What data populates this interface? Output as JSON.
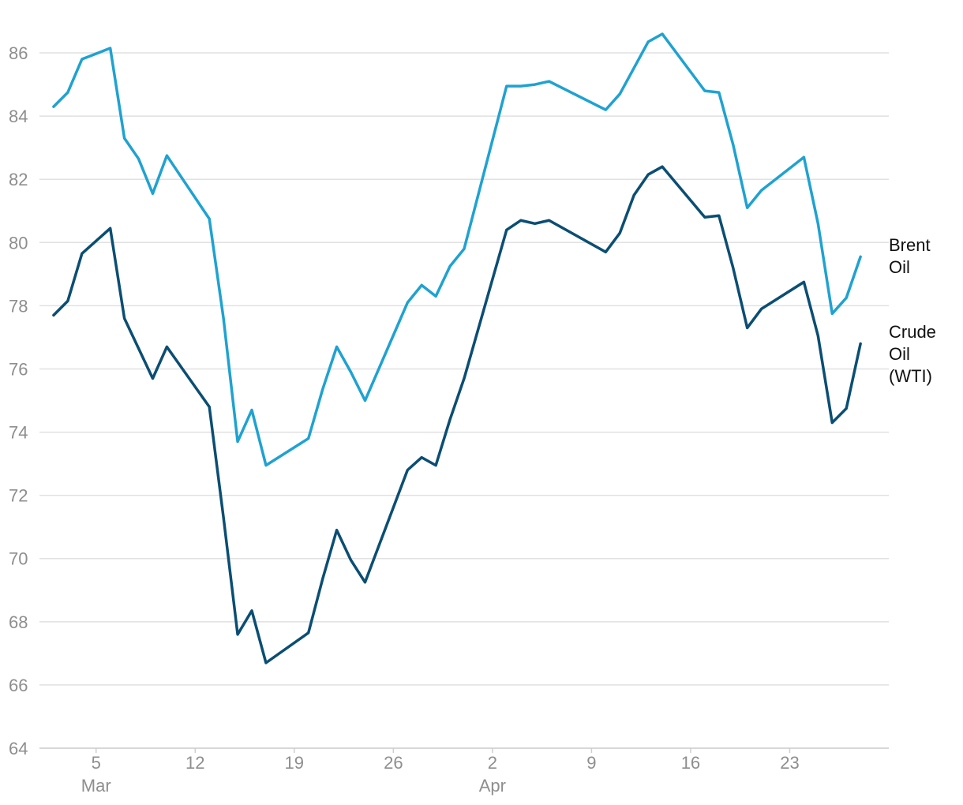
{
  "chart_data": {
    "type": "line",
    "title": "",
    "xlabel": "",
    "ylabel": "",
    "ylim": [
      64,
      87
    ],
    "yticks": [
      64,
      66,
      68,
      70,
      72,
      74,
      76,
      78,
      80,
      82,
      84,
      86
    ],
    "xlim": [
      "2024-03-01",
      "2024-04-30"
    ],
    "xticks": [
      {
        "date": "2024-03-05",
        "label": "5",
        "month": "Mar"
      },
      {
        "date": "2024-03-12",
        "label": "12",
        "month": ""
      },
      {
        "date": "2024-03-19",
        "label": "19",
        "month": ""
      },
      {
        "date": "2024-03-26",
        "label": "26",
        "month": ""
      },
      {
        "date": "2024-04-02",
        "label": "2",
        "month": "Apr"
      },
      {
        "date": "2024-04-09",
        "label": "9",
        "month": ""
      },
      {
        "date": "2024-04-16",
        "label": "16",
        "month": ""
      },
      {
        "date": "2024-04-23",
        "label": "23",
        "month": ""
      }
    ],
    "grid": true,
    "legend": "inline-right",
    "series": [
      {
        "name": "Brent Oil",
        "color": "#1fa2d1",
        "points": [
          [
            "2024-03-02",
            84.3
          ],
          [
            "2024-03-03",
            84.75
          ],
          [
            "2024-03-04",
            85.8
          ],
          [
            "2024-03-06",
            86.15
          ],
          [
            "2024-03-07",
            83.3
          ],
          [
            "2024-03-08",
            82.65
          ],
          [
            "2024-03-09",
            81.55
          ],
          [
            "2024-03-10",
            82.75
          ],
          [
            "2024-03-13",
            80.75
          ],
          [
            "2024-03-14",
            77.6
          ],
          [
            "2024-03-15",
            73.7
          ],
          [
            "2024-03-16",
            74.7
          ],
          [
            "2024-03-17",
            72.95
          ],
          [
            "2024-03-20",
            73.8
          ],
          [
            "2024-03-21",
            75.35
          ],
          [
            "2024-03-22",
            76.7
          ],
          [
            "2024-03-23",
            75.9
          ],
          [
            "2024-03-24",
            75.0
          ],
          [
            "2024-03-27",
            78.1
          ],
          [
            "2024-03-28",
            78.65
          ],
          [
            "2024-03-29",
            78.3
          ],
          [
            "2024-03-30",
            79.25
          ],
          [
            "2024-03-31",
            79.8
          ],
          [
            "2024-04-03",
            84.95
          ],
          [
            "2024-04-04",
            84.95
          ],
          [
            "2024-04-05",
            85.0
          ],
          [
            "2024-04-06",
            85.1
          ],
          [
            "2024-04-10",
            84.2
          ],
          [
            "2024-04-11",
            84.7
          ],
          [
            "2024-04-13",
            86.35
          ],
          [
            "2024-04-14",
            86.6
          ],
          [
            "2024-04-17",
            84.8
          ],
          [
            "2024-04-18",
            84.75
          ],
          [
            "2024-04-19",
            83.1
          ],
          [
            "2024-04-20",
            81.1
          ],
          [
            "2024-04-21",
            81.65
          ],
          [
            "2024-04-24",
            82.7
          ],
          [
            "2024-04-25",
            80.6
          ],
          [
            "2024-04-26",
            77.75
          ],
          [
            "2024-04-27",
            78.25
          ],
          [
            "2024-04-28",
            79.55
          ]
        ]
      },
      {
        "name": "Crude Oil (WTI)",
        "color": "#0b4e73",
        "points": [
          [
            "2024-03-02",
            77.7
          ],
          [
            "2024-03-03",
            78.15
          ],
          [
            "2024-03-04",
            79.65
          ],
          [
            "2024-03-06",
            80.45
          ],
          [
            "2024-03-07",
            77.6
          ],
          [
            "2024-03-09",
            75.7
          ],
          [
            "2024-03-10",
            76.7
          ],
          [
            "2024-03-13",
            74.8
          ],
          [
            "2024-03-14",
            71.3
          ],
          [
            "2024-03-15",
            67.6
          ],
          [
            "2024-03-16",
            68.35
          ],
          [
            "2024-03-17",
            66.7
          ],
          [
            "2024-03-20",
            67.65
          ],
          [
            "2024-03-21",
            69.35
          ],
          [
            "2024-03-22",
            70.9
          ],
          [
            "2024-03-23",
            69.95
          ],
          [
            "2024-03-24",
            69.25
          ],
          [
            "2024-03-27",
            72.8
          ],
          [
            "2024-03-28",
            73.2
          ],
          [
            "2024-03-29",
            72.95
          ],
          [
            "2024-03-30",
            74.4
          ],
          [
            "2024-03-31",
            75.7
          ],
          [
            "2024-04-03",
            80.4
          ],
          [
            "2024-04-04",
            80.7
          ],
          [
            "2024-04-05",
            80.6
          ],
          [
            "2024-04-06",
            80.7
          ],
          [
            "2024-04-10",
            79.7
          ],
          [
            "2024-04-11",
            80.3
          ],
          [
            "2024-04-12",
            81.5
          ],
          [
            "2024-04-13",
            82.15
          ],
          [
            "2024-04-14",
            82.4
          ],
          [
            "2024-04-17",
            80.8
          ],
          [
            "2024-04-18",
            80.85
          ],
          [
            "2024-04-19",
            79.2
          ],
          [
            "2024-04-20",
            77.3
          ],
          [
            "2024-04-21",
            77.9
          ],
          [
            "2024-04-24",
            78.75
          ],
          [
            "2024-04-25",
            77.05
          ],
          [
            "2024-04-26",
            74.3
          ],
          [
            "2024-04-27",
            74.75
          ],
          [
            "2024-04-28",
            76.8
          ]
        ]
      }
    ]
  },
  "labels": {
    "brent": [
      "Brent",
      "Oil"
    ],
    "wti": [
      "Crude",
      "Oil",
      "(WTI)"
    ]
  }
}
